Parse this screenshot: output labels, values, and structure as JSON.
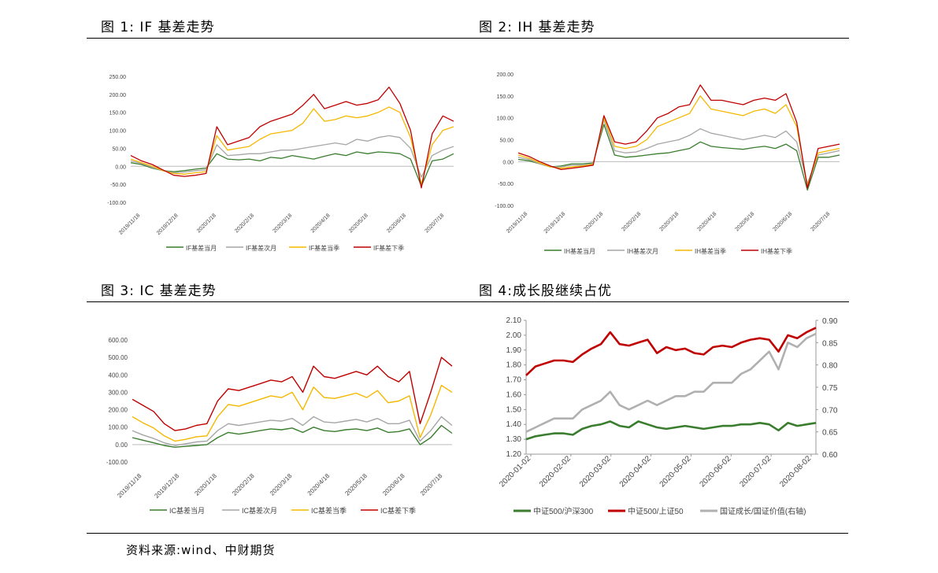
{
  "panels": [
    {
      "title": "图 1: IF 基差走势"
    },
    {
      "title": "图 2: IH 基差走势"
    },
    {
      "title": "图 3: IC 基差走势"
    },
    {
      "title": "图 4:成长股继续占优"
    }
  ],
  "source": "资料来源:wind、中财期货",
  "colors": {
    "green": "#3a7d2e",
    "gray": "#a6a6a6",
    "yellow": "#f5b800",
    "red": "#c00000"
  },
  "chart_data": [
    {
      "type": "line",
      "x_ticks": [
        "2019/11/18",
        "2019/12/18",
        "2020/1/18",
        "2020/2/18",
        "2020/3/18",
        "2020/4/18",
        "2020/5/18",
        "2020/6/18",
        "2020/7/18"
      ],
      "ylim": [
        -100,
        250
      ],
      "y_ticks": [
        "250.00",
        "200.00",
        "150.00",
        "100.00",
        "50.00",
        "0.00",
        "-50.00",
        "-100.00"
      ],
      "grid": false,
      "legend_position": "bottom",
      "series": [
        {
          "name": "IF基差当月",
          "values": [
            10,
            5,
            -5,
            -12,
            -15,
            -12,
            -8,
            -5,
            35,
            20,
            18,
            20,
            15,
            25,
            22,
            30,
            25,
            20,
            28,
            35,
            30,
            40,
            35,
            40,
            38,
            35,
            20,
            -55,
            15,
            20,
            35
          ]
        },
        {
          "name": "IF基差次月",
          "values": [
            15,
            8,
            -3,
            -12,
            -18,
            -16,
            -12,
            -10,
            60,
            30,
            32,
            35,
            35,
            40,
            45,
            45,
            50,
            55,
            60,
            65,
            60,
            75,
            70,
            80,
            85,
            80,
            50,
            -30,
            30,
            45,
            55
          ]
        },
        {
          "name": "IF基差当季",
          "values": [
            20,
            10,
            0,
            -12,
            -20,
            -22,
            -18,
            -15,
            85,
            45,
            50,
            55,
            75,
            90,
            95,
            100,
            120,
            160,
            125,
            130,
            140,
            135,
            140,
            150,
            165,
            150,
            80,
            -50,
            60,
            100,
            110
          ]
        },
        {
          "name": "IF基差下季",
          "values": [
            30,
            15,
            5,
            -10,
            -25,
            -28,
            -25,
            -20,
            110,
            60,
            70,
            80,
            110,
            125,
            135,
            145,
            170,
            200,
            160,
            170,
            180,
            170,
            175,
            185,
            220,
            175,
            100,
            -60,
            90,
            140,
            125
          ]
        }
      ]
    },
    {
      "type": "line",
      "x_ticks": [
        "2019/11/18",
        "2019/12/18",
        "2020/1/18",
        "2020/2/18",
        "2020/3/18",
        "2020/4/18",
        "2020/5/18",
        "2020/6/18",
        "2020/7/18"
      ],
      "ylim": [
        -100,
        200
      ],
      "y_ticks": [
        "200.00",
        "150.00",
        "100.00",
        "50.00",
        "0.00",
        "-50.00",
        "-100.00"
      ],
      "grid": false,
      "legend_position": "bottom",
      "series": [
        {
          "name": "IH基差当月",
          "values": [
            5,
            2,
            -5,
            -12,
            -10,
            -5,
            -5,
            -3,
            85,
            15,
            10,
            12,
            15,
            18,
            20,
            25,
            30,
            45,
            35,
            32,
            30,
            28,
            32,
            35,
            30,
            40,
            25,
            -65,
            10,
            10,
            15
          ]
        },
        {
          "name": "IH基差次月",
          "values": [
            10,
            5,
            -5,
            -12,
            -12,
            -8,
            -8,
            -5,
            95,
            25,
            20,
            22,
            30,
            40,
            45,
            50,
            60,
            75,
            65,
            60,
            55,
            50,
            55,
            60,
            55,
            70,
            45,
            -50,
            15,
            20,
            25
          ]
        },
        {
          "name": "IH基差当季",
          "values": [
            15,
            8,
            -3,
            -12,
            -15,
            -12,
            -10,
            -6,
            100,
            35,
            30,
            35,
            50,
            80,
            90,
            100,
            110,
            150,
            120,
            115,
            110,
            105,
            115,
            120,
            110,
            130,
            80,
            -55,
            20,
            25,
            30
          ]
        },
        {
          "name": "IH基差下季",
          "values": [
            20,
            12,
            0,
            -10,
            -18,
            -15,
            -12,
            -8,
            105,
            45,
            40,
            45,
            70,
            100,
            110,
            125,
            130,
            175,
            140,
            140,
            135,
            130,
            140,
            145,
            140,
            155,
            90,
            -60,
            30,
            35,
            40
          ]
        }
      ]
    },
    {
      "type": "line",
      "x_ticks": [
        "2019/11/18",
        "2019/12/18",
        "2020/1/18",
        "2020/2/18",
        "2020/3/18",
        "2020/4/18",
        "2020/5/18",
        "2020/6/18",
        "2020/7/18"
      ],
      "ylim": [
        -100,
        600
      ],
      "y_ticks": [
        "600.00",
        "500.00",
        "400.00",
        "300.00",
        "200.00",
        "100.00",
        "0.00",
        "-100.00"
      ],
      "grid": false,
      "legend_position": "bottom",
      "series": [
        {
          "name": "IC基差当月",
          "values": [
            40,
            25,
            10,
            -5,
            -15,
            -10,
            -5,
            0,
            40,
            70,
            60,
            70,
            80,
            90,
            85,
            95,
            70,
            100,
            80,
            75,
            85,
            90,
            80,
            95,
            70,
            75,
            90,
            0,
            40,
            110,
            65
          ]
        },
        {
          "name": "IC基差次月",
          "values": [
            80,
            55,
            35,
            10,
            -5,
            5,
            15,
            20,
            80,
            120,
            110,
            120,
            130,
            140,
            135,
            150,
            110,
            160,
            130,
            125,
            135,
            145,
            130,
            150,
            120,
            120,
            140,
            20,
            80,
            160,
            110
          ]
        },
        {
          "name": "IC基差当季",
          "values": [
            160,
            125,
            95,
            50,
            20,
            30,
            45,
            50,
            160,
            230,
            220,
            240,
            260,
            280,
            270,
            300,
            200,
            330,
            270,
            265,
            280,
            295,
            270,
            310,
            240,
            250,
            280,
            40,
            170,
            340,
            300
          ]
        },
        {
          "name": "IC基差下季",
          "values": [
            260,
            225,
            190,
            120,
            80,
            90,
            110,
            120,
            250,
            320,
            310,
            330,
            350,
            370,
            360,
            390,
            300,
            450,
            390,
            380,
            400,
            420,
            400,
            450,
            390,
            360,
            420,
            120,
            300,
            500,
            450
          ]
        }
      ]
    },
    {
      "type": "line",
      "x_ticks": [
        "2020-01-02",
        "2020-02-02",
        "2020-03-02",
        "2020-04-02",
        "2020-05-02",
        "2020-06-02",
        "2020-07-02",
        "2020-08-02"
      ],
      "ylim": [
        1.2,
        2.1
      ],
      "y_ticks": [
        "2.10",
        "2.00",
        "1.90",
        "1.80",
        "1.70",
        "1.60",
        "1.50",
        "1.40",
        "1.30",
        "1.20"
      ],
      "y2lim": [
        0.6,
        0.9
      ],
      "y2_ticks": [
        "0.90",
        "0.85",
        "0.80",
        "0.75",
        "0.70",
        "0.65",
        "0.60"
      ],
      "grid": false,
      "legend_position": "bottom",
      "series": [
        {
          "name": "中证500/沪深300",
          "axis": "left",
          "values": [
            1.3,
            1.32,
            1.33,
            1.34,
            1.34,
            1.33,
            1.37,
            1.39,
            1.4,
            1.42,
            1.39,
            1.38,
            1.42,
            1.4,
            1.38,
            1.37,
            1.38,
            1.39,
            1.38,
            1.37,
            1.38,
            1.39,
            1.39,
            1.4,
            1.4,
            1.41,
            1.4,
            1.36,
            1.41,
            1.39,
            1.4,
            1.41
          ]
        },
        {
          "name": "中证500/上证50",
          "axis": "left",
          "values": [
            1.73,
            1.79,
            1.81,
            1.83,
            1.83,
            1.82,
            1.87,
            1.91,
            1.94,
            2.02,
            1.94,
            1.93,
            1.95,
            1.97,
            1.88,
            1.92,
            1.9,
            1.91,
            1.88,
            1.87,
            1.92,
            1.93,
            1.92,
            1.95,
            1.97,
            1.98,
            1.97,
            1.89,
            2.0,
            1.98,
            2.02,
            2.05
          ]
        },
        {
          "name": "国证成长/国证价值(右轴)",
          "axis": "right",
          "values": [
            0.65,
            0.66,
            0.67,
            0.68,
            0.68,
            0.68,
            0.7,
            0.71,
            0.72,
            0.74,
            0.71,
            0.7,
            0.71,
            0.72,
            0.71,
            0.72,
            0.73,
            0.73,
            0.74,
            0.74,
            0.76,
            0.76,
            0.76,
            0.78,
            0.79,
            0.81,
            0.83,
            0.79,
            0.85,
            0.84,
            0.86,
            0.87
          ]
        }
      ]
    }
  ]
}
